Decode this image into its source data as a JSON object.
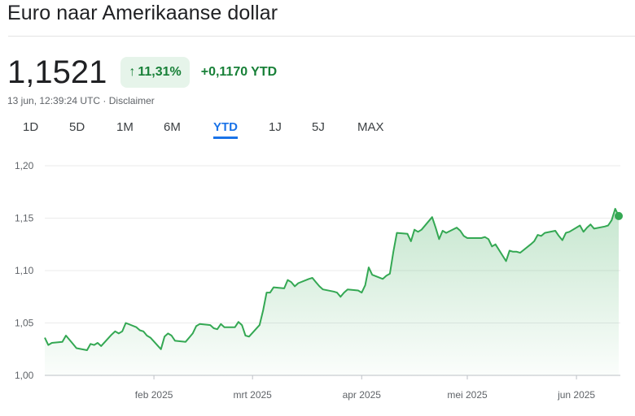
{
  "title": "Euro naar Amerikaanse dollar",
  "price": "1,1521",
  "change_percent": "11,31%",
  "change_arrow": "↑",
  "change_abs": "+0,1170",
  "change_period": "YTD",
  "timestamp": "13 jun, 12:39:24 UTC",
  "disclaimer": "Disclaimer",
  "tabs": [
    "1D",
    "5D",
    "1M",
    "6M",
    "YTD",
    "1J",
    "5J",
    "MAX"
  ],
  "active_tab": "YTD",
  "colors": {
    "line": "#34a853",
    "positive": "#188038",
    "badge_bg": "#e6f4ea",
    "active_tab": "#1a73e8"
  },
  "chart_data": {
    "type": "area",
    "ylim": [
      1.0,
      1.2
    ],
    "yticks": [
      1.0,
      1.05,
      1.1,
      1.15,
      1.2
    ],
    "ytick_labels": [
      "1,00",
      "1,05",
      "1,10",
      "1,15",
      "1,20"
    ],
    "xlim": [
      "2025-01-01",
      "2025-06-13"
    ],
    "xticks": [
      "2025-02-01",
      "2025-03-01",
      "2025-04-01",
      "2025-05-01",
      "2025-06-01"
    ],
    "xtick_labels": [
      "feb 2025",
      "mrt 2025",
      "apr 2025",
      "mei 2025",
      "jun 2025"
    ],
    "grid": true,
    "points": [
      [
        "2025-01-01",
        1.036
      ],
      [
        "2025-01-02",
        1.029
      ],
      [
        "2025-01-03",
        1.031
      ],
      [
        "2025-01-06",
        1.032
      ],
      [
        "2025-01-07",
        1.038
      ],
      [
        "2025-01-08",
        1.034
      ],
      [
        "2025-01-09",
        1.03
      ],
      [
        "2025-01-10",
        1.026
      ],
      [
        "2025-01-13",
        1.024
      ],
      [
        "2025-01-14",
        1.03
      ],
      [
        "2025-01-15",
        1.029
      ],
      [
        "2025-01-16",
        1.031
      ],
      [
        "2025-01-17",
        1.028
      ],
      [
        "2025-01-20",
        1.039
      ],
      [
        "2025-01-21",
        1.042
      ],
      [
        "2025-01-22",
        1.04
      ],
      [
        "2025-01-23",
        1.042
      ],
      [
        "2025-01-24",
        1.05
      ],
      [
        "2025-01-27",
        1.046
      ],
      [
        "2025-01-28",
        1.043
      ],
      [
        "2025-01-29",
        1.042
      ],
      [
        "2025-01-30",
        1.038
      ],
      [
        "2025-01-31",
        1.036
      ],
      [
        "2025-02-03",
        1.025
      ],
      [
        "2025-02-04",
        1.037
      ],
      [
        "2025-02-05",
        1.04
      ],
      [
        "2025-02-06",
        1.038
      ],
      [
        "2025-02-07",
        1.033
      ],
      [
        "2025-02-10",
        1.032
      ],
      [
        "2025-02-11",
        1.036
      ],
      [
        "2025-02-12",
        1.04
      ],
      [
        "2025-02-13",
        1.047
      ],
      [
        "2025-02-14",
        1.049
      ],
      [
        "2025-02-17",
        1.048
      ],
      [
        "2025-02-18",
        1.045
      ],
      [
        "2025-02-19",
        1.044
      ],
      [
        "2025-02-20",
        1.049
      ],
      [
        "2025-02-21",
        1.046
      ],
      [
        "2025-02-24",
        1.046
      ],
      [
        "2025-02-25",
        1.051
      ],
      [
        "2025-02-26",
        1.048
      ],
      [
        "2025-02-27",
        1.038
      ],
      [
        "2025-02-28",
        1.037
      ],
      [
        "2025-03-03",
        1.048
      ],
      [
        "2025-03-04",
        1.062
      ],
      [
        "2025-03-05",
        1.079
      ],
      [
        "2025-03-06",
        1.079
      ],
      [
        "2025-03-07",
        1.084
      ],
      [
        "2025-03-10",
        1.083
      ],
      [
        "2025-03-11",
        1.091
      ],
      [
        "2025-03-12",
        1.089
      ],
      [
        "2025-03-13",
        1.085
      ],
      [
        "2025-03-14",
        1.088
      ],
      [
        "2025-03-17",
        1.092
      ],
      [
        "2025-03-18",
        1.093
      ],
      [
        "2025-03-19",
        1.089
      ],
      [
        "2025-03-20",
        1.085
      ],
      [
        "2025-03-21",
        1.082
      ],
      [
        "2025-03-24",
        1.08
      ],
      [
        "2025-03-25",
        1.079
      ],
      [
        "2025-03-26",
        1.075
      ],
      [
        "2025-03-27",
        1.079
      ],
      [
        "2025-03-28",
        1.082
      ],
      [
        "2025-03-31",
        1.081
      ],
      [
        "2025-04-01",
        1.079
      ],
      [
        "2025-04-02",
        1.086
      ],
      [
        "2025-04-03",
        1.103
      ],
      [
        "2025-04-04",
        1.096
      ],
      [
        "2025-04-07",
        1.092
      ],
      [
        "2025-04-08",
        1.095
      ],
      [
        "2025-04-09",
        1.097
      ],
      [
        "2025-04-10",
        1.118
      ],
      [
        "2025-04-11",
        1.136
      ],
      [
        "2025-04-14",
        1.135
      ],
      [
        "2025-04-15",
        1.128
      ],
      [
        "2025-04-16",
        1.139
      ],
      [
        "2025-04-17",
        1.137
      ],
      [
        "2025-04-18",
        1.139
      ],
      [
        "2025-04-21",
        1.151
      ],
      [
        "2025-04-22",
        1.141
      ],
      [
        "2025-04-23",
        1.13
      ],
      [
        "2025-04-24",
        1.138
      ],
      [
        "2025-04-25",
        1.136
      ],
      [
        "2025-04-28",
        1.141
      ],
      [
        "2025-04-29",
        1.138
      ],
      [
        "2025-04-30",
        1.133
      ],
      [
        "2025-05-01",
        1.131
      ],
      [
        "2025-05-02",
        1.131
      ],
      [
        "2025-05-05",
        1.131
      ],
      [
        "2025-05-06",
        1.132
      ],
      [
        "2025-05-07",
        1.13
      ],
      [
        "2025-05-08",
        1.123
      ],
      [
        "2025-05-09",
        1.125
      ],
      [
        "2025-05-12",
        1.109
      ],
      [
        "2025-05-13",
        1.119
      ],
      [
        "2025-05-14",
        1.118
      ],
      [
        "2025-05-15",
        1.118
      ],
      [
        "2025-05-16",
        1.117
      ],
      [
        "2025-05-19",
        1.125
      ],
      [
        "2025-05-20",
        1.128
      ],
      [
        "2025-05-21",
        1.134
      ],
      [
        "2025-05-22",
        1.133
      ],
      [
        "2025-05-23",
        1.136
      ],
      [
        "2025-05-26",
        1.138
      ],
      [
        "2025-05-27",
        1.133
      ],
      [
        "2025-05-28",
        1.129
      ],
      [
        "2025-05-29",
        1.136
      ],
      [
        "2025-05-30",
        1.137
      ],
      [
        "2025-06-02",
        1.143
      ],
      [
        "2025-06-03",
        1.137
      ],
      [
        "2025-06-04",
        1.141
      ],
      [
        "2025-06-05",
        1.144
      ],
      [
        "2025-06-06",
        1.14
      ],
      [
        "2025-06-09",
        1.142
      ],
      [
        "2025-06-10",
        1.143
      ],
      [
        "2025-06-11",
        1.148
      ],
      [
        "2025-06-12",
        1.159
      ],
      [
        "2025-06-13",
        1.152
      ]
    ]
  }
}
